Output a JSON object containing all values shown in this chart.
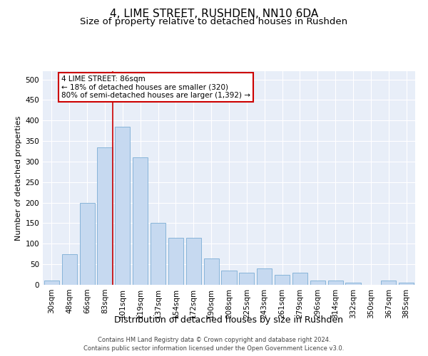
{
  "title": "4, LIME STREET, RUSHDEN, NN10 6DA",
  "subtitle": "Size of property relative to detached houses in Rushden",
  "xlabel": "Distribution of detached houses by size in Rushden",
  "ylabel": "Number of detached properties",
  "categories": [
    "30sqm",
    "48sqm",
    "66sqm",
    "83sqm",
    "101sqm",
    "119sqm",
    "137sqm",
    "154sqm",
    "172sqm",
    "190sqm",
    "208sqm",
    "225sqm",
    "243sqm",
    "261sqm",
    "279sqm",
    "296sqm",
    "314sqm",
    "332sqm",
    "350sqm",
    "367sqm",
    "385sqm"
  ],
  "values": [
    10,
    75,
    200,
    335,
    385,
    310,
    150,
    115,
    115,
    65,
    35,
    30,
    40,
    25,
    30,
    10,
    10,
    5,
    0,
    10,
    5
  ],
  "bar_color": "#c6d9f0",
  "bar_edge_color": "#7aadd4",
  "annotation_line1": "4 LIME STREET: 86sqm",
  "annotation_line2": "← 18% of detached houses are smaller (320)",
  "annotation_line3": "80% of semi-detached houses are larger (1,392) →",
  "annotation_box_color": "#ffffff",
  "annotation_box_edge": "#cc0000",
  "red_line_index": 3.43,
  "ylim": [
    0,
    520
  ],
  "yticks": [
    0,
    50,
    100,
    150,
    200,
    250,
    300,
    350,
    400,
    450,
    500
  ],
  "footer1": "Contains HM Land Registry data © Crown copyright and database right 2024.",
  "footer2": "Contains public sector information licensed under the Open Government Licence v3.0.",
  "bg_color": "#e8eef8",
  "fig_bg_color": "#ffffff",
  "title_fontsize": 11,
  "subtitle_fontsize": 9.5,
  "xlabel_fontsize": 9,
  "ylabel_fontsize": 8,
  "tick_fontsize": 7.5,
  "footer_fontsize": 6,
  "annotation_fontsize": 7.5
}
